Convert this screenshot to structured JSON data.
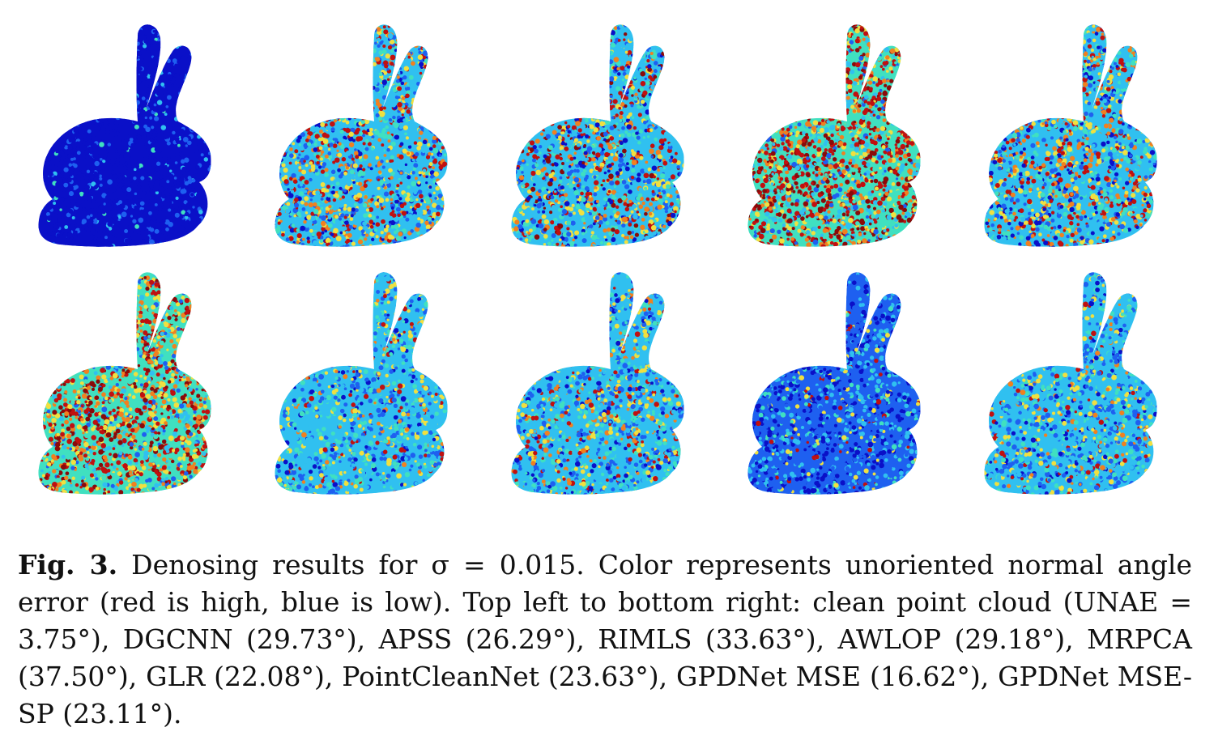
{
  "figure": {
    "panels": [
      {
        "id": "clean",
        "palette": "clean"
      },
      {
        "id": "dgcnn",
        "palette": "mixed"
      },
      {
        "id": "apss",
        "palette": "blotchy"
      },
      {
        "id": "rimls",
        "palette": "red"
      },
      {
        "id": "awlop",
        "palette": "mixed"
      },
      {
        "id": "mrpca",
        "palette": "redmix"
      },
      {
        "id": "glr",
        "palette": "cyan"
      },
      {
        "id": "pointcleannet",
        "palette": "cyanmix"
      },
      {
        "id": "gpdnet-mse",
        "palette": "blue"
      },
      {
        "id": "gpdnet-mse-sp",
        "palette": "cyan"
      }
    ],
    "colors": {
      "dark_blue": "#0a10c8",
      "blue": "#1e60f0",
      "cyan": "#30c0f0",
      "teal": "#40e0c0",
      "yellow": "#f0e040",
      "orange": "#f08020",
      "red": "#c01010",
      "dark_red": "#8a0a0a"
    }
  },
  "caption": {
    "label": "Fig. 3.",
    "text": " Denosing results for σ = 0.015. Color represents unoriented normal angle error (red is high, blue is low). Top left to bottom right: clean point cloud (UNAE = 3.75°), DGCNN (29.73°), APSS (26.29°), RIMLS (33.63°), AWLOP (29.18°), MRPCA (37.50°), GLR (22.08°), PointCleanNet (23.63°), GPDNet MSE (16.62°), GPDNet MSE-SP (23.11°)."
  }
}
